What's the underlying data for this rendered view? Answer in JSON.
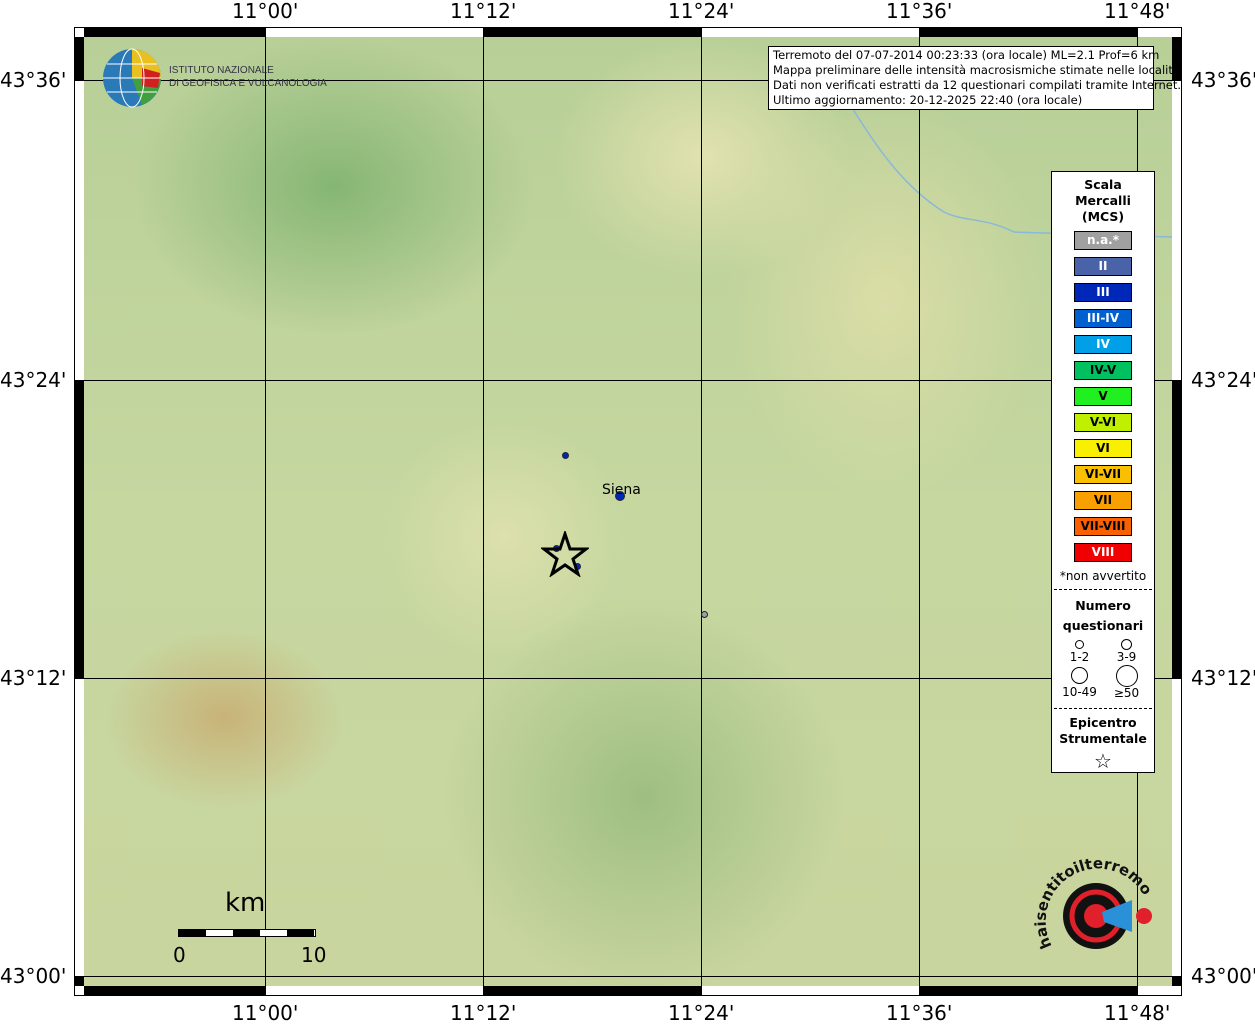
{
  "info": {
    "lines": [
      "Terremoto del 07-07-2014 00:23:33 (ora locale) ML=2.1 Prof=6 km",
      "Mappa preliminare delle intensità macrosismiche stimate nelle località",
      "Dati non verificati estratti da 12 questionari compilati tramite Internet.",
      "Ultimo aggiornamento: 20-12-2025 22:40 (ora locale)"
    ]
  },
  "logo": {
    "line1": "ISTITUTO NAZIONALE",
    "line2": "DI GEOFISICA E VULCANOLOGIA",
    "hsit": "www.haisentitoilterremoto.it"
  },
  "axes": {
    "lon": [
      "11°00'",
      "11°12'",
      "11°24'",
      "11°36'",
      "11°48'"
    ],
    "lat": [
      "43°36'",
      "43°24'",
      "43°12'",
      "43°00'"
    ]
  },
  "legend": {
    "title": [
      "Scala",
      "Mercalli",
      "(MCS)"
    ],
    "scale": [
      {
        "label": "n.a.*",
        "color": "#a0a0a0"
      },
      {
        "label": "II",
        "color": "#4a62a8"
      },
      {
        "label": "III",
        "color": "#0028b8"
      },
      {
        "label": "III-IV",
        "color": "#0060d0"
      },
      {
        "label": "IV",
        "color": "#00a0e8"
      },
      {
        "label": "IV-V",
        "color": "#00c060"
      },
      {
        "label": "V",
        "color": "#20f020"
      },
      {
        "label": "V-VI",
        "color": "#c0f000"
      },
      {
        "label": "VI",
        "color": "#f8f000"
      },
      {
        "label": "VI-VII",
        "color": "#f8c000"
      },
      {
        "label": "VII",
        "color": "#f8a000"
      },
      {
        "label": "VII-VIII",
        "color": "#f86000"
      },
      {
        "label": "VIII",
        "color": "#f00000"
      }
    ],
    "note": "*non avvertito",
    "count_title": [
      "Numero",
      "questionari"
    ],
    "counts": [
      "1-2",
      "3-9",
      "10-49",
      "≥50"
    ],
    "epi_title": [
      "Epicentro",
      "Strumentale"
    ]
  },
  "places": [
    {
      "name": "Siena"
    }
  ],
  "scalebar": {
    "unit": "km",
    "min": "0",
    "max": "10"
  }
}
